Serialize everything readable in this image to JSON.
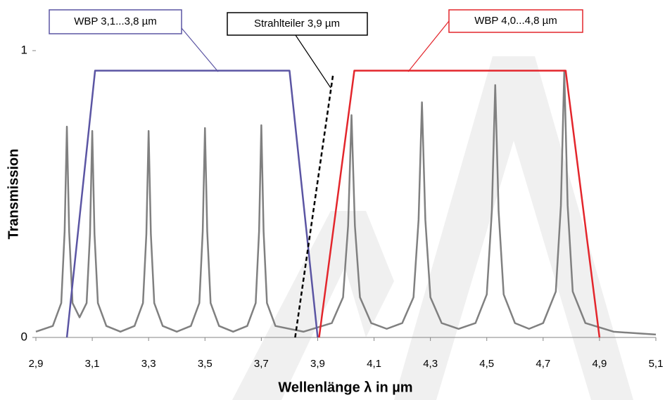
{
  "chart_data": {
    "type": "line",
    "x_label": "Wellenlänge λ in µm",
    "y_label": "Transmission",
    "xlim": [
      2.9,
      5.1
    ],
    "ylim": [
      0,
      1
    ],
    "xticks": [
      {
        "value": 2.9,
        "label": "2,9"
      },
      {
        "value": 3.1,
        "label": "3,1"
      },
      {
        "value": 3.3,
        "label": "3,3"
      },
      {
        "value": 3.5,
        "label": "3,5"
      },
      {
        "value": 3.7,
        "label": "3,7"
      },
      {
        "value": 3.9,
        "label": "3,9"
      },
      {
        "value": 4.1,
        "label": "4,1"
      },
      {
        "value": 4.3,
        "label": "4,3"
      },
      {
        "value": 4.5,
        "label": "4,5"
      },
      {
        "value": 4.7,
        "label": "4,7"
      },
      {
        "value": 4.9,
        "label": "4,9"
      },
      {
        "value": 5.1,
        "label": "5,1"
      }
    ],
    "yticks": [
      0,
      1
    ],
    "series": [
      {
        "color": "#808080",
        "x": [
          2.9,
          2.96,
          2.99,
          3.002,
          3.01,
          3.018,
          3.03,
          3.055,
          3.08,
          3.092,
          3.1,
          3.108,
          3.12,
          3.15,
          3.2,
          3.25,
          3.28,
          3.292,
          3.3,
          3.308,
          3.32,
          3.35,
          3.4,
          3.45,
          3.48,
          3.492,
          3.5,
          3.508,
          3.52,
          3.55,
          3.6,
          3.65,
          3.68,
          3.692,
          3.7,
          3.708,
          3.72,
          3.75,
          3.85,
          3.95,
          3.99,
          4.008,
          4.02,
          4.032,
          4.05,
          4.09,
          4.145,
          4.2,
          4.24,
          4.258,
          4.27,
          4.282,
          4.3,
          4.34,
          4.4,
          4.46,
          4.5,
          4.518,
          4.53,
          4.542,
          4.56,
          4.6,
          4.65,
          4.7,
          4.745,
          4.763,
          4.775,
          4.787,
          4.805,
          4.85,
          4.95,
          5.1
        ],
        "values": [
          0.02,
          0.04,
          0.12,
          0.37,
          0.735,
          0.37,
          0.12,
          0.07,
          0.12,
          0.36,
          0.72,
          0.36,
          0.12,
          0.04,
          0.02,
          0.04,
          0.12,
          0.36,
          0.72,
          0.36,
          0.12,
          0.04,
          0.02,
          0.04,
          0.12,
          0.37,
          0.73,
          0.37,
          0.12,
          0.04,
          0.02,
          0.04,
          0.12,
          0.37,
          0.74,
          0.37,
          0.12,
          0.04,
          0.02,
          0.05,
          0.14,
          0.39,
          0.775,
          0.39,
          0.14,
          0.05,
          0.03,
          0.05,
          0.14,
          0.41,
          0.82,
          0.41,
          0.14,
          0.05,
          0.03,
          0.05,
          0.15,
          0.44,
          0.88,
          0.44,
          0.15,
          0.05,
          0.03,
          0.05,
          0.16,
          0.46,
          0.93,
          0.46,
          0.16,
          0.05,
          0.02,
          0.01
        ]
      },
      {
        "color": "#5b55a3",
        "x": [
          3.01,
          3.11,
          3.8,
          3.9
        ],
        "values": [
          0,
          0.93,
          0.93,
          0
        ]
      },
      {
        "color": "#e3262c",
        "x": [
          3.905,
          4.03,
          4.78,
          4.9
        ],
        "values": [
          0,
          0.93,
          0.93,
          0
        ]
      },
      {
        "color": "#000000",
        "dashed": true,
        "x": [
          3.82,
          3.955
        ],
        "values": [
          0,
          0.92
        ]
      }
    ],
    "annotations": [
      {
        "text": "WBP 3,1...3,8 µm",
        "color": "#5b55a3"
      },
      {
        "text": "Strahlteiler 3,9 µm",
        "color": "#000000"
      },
      {
        "text": "WBP 4,0...4,8 µm",
        "color": "#e3262c"
      }
    ]
  }
}
